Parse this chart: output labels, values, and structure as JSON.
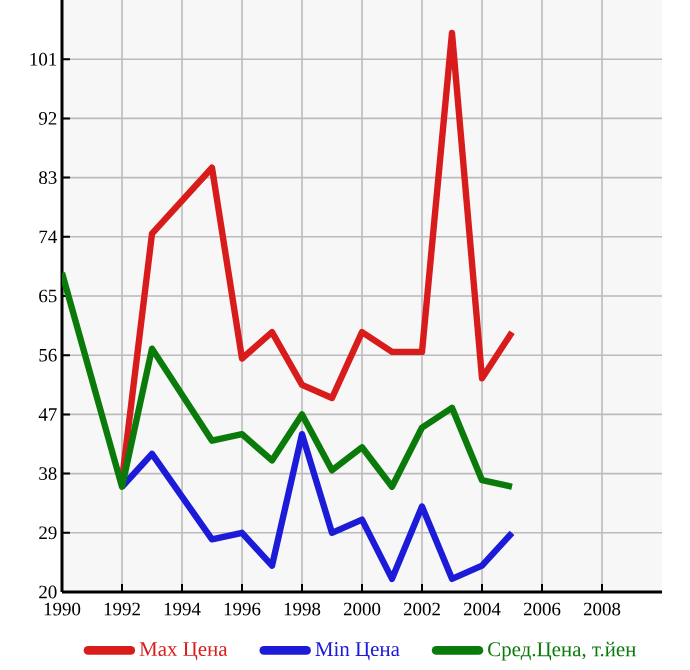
{
  "chart_data": {
    "type": "line",
    "x": [
      1990,
      1992,
      1993,
      1995,
      1996,
      1997,
      1998,
      1999,
      2000,
      2001,
      2002,
      2003,
      2004,
      2005
    ],
    "series": [
      {
        "name": "Max Цена",
        "color": "#d81c1c",
        "values": [
          null,
          37,
          74.5,
          84.5,
          55.5,
          59.5,
          51.5,
          49.5,
          59.5,
          56.5,
          56.5,
          105,
          52.5,
          59.5
        ]
      },
      {
        "name": "Min Цена",
        "color": "#1c1cd8",
        "values": [
          null,
          36,
          41,
          28,
          29,
          24,
          44,
          29,
          31,
          22,
          33,
          22,
          24,
          29
        ]
      },
      {
        "name": "Сред.Цена, т.йен",
        "color": "#0a7a0a",
        "values": [
          68.5,
          36,
          57,
          43,
          44,
          40,
          47,
          38.5,
          42,
          36,
          45,
          48,
          37,
          36
        ]
      }
    ],
    "xlim": [
      1990,
      2010
    ],
    "xticks": [
      1990,
      1992,
      1994,
      1996,
      1998,
      2000,
      2002,
      2004,
      2006,
      2008
    ],
    "ylim": [
      20,
      110
    ],
    "yticks": [
      20,
      29,
      38,
      47,
      56,
      65,
      74,
      83,
      92,
      101
    ],
    "grid": true,
    "legend": "bottom",
    "marker": "none",
    "line_style": "solid"
  }
}
